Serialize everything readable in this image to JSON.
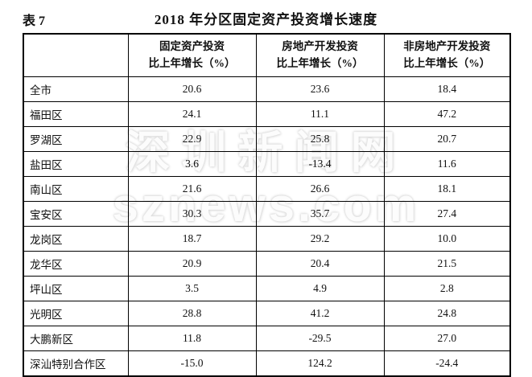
{
  "page": {
    "table_label": "表 7",
    "title": "2018 年分区固定资产投资增长速度"
  },
  "watermark": {
    "line1": "深圳新闻网",
    "line2": "sznews.com"
  },
  "table": {
    "corner_header": "",
    "columns": [
      {
        "line1": "固定资产投资",
        "line2": "比上年增长（%）"
      },
      {
        "line1": "房地产开发投资",
        "line2": "比上年增长（%）"
      },
      {
        "line1": "非房地产开发投资",
        "line2": "比上年增长（%）"
      }
    ],
    "rows": [
      {
        "district": "全市",
        "values": [
          "20.6",
          "23.6",
          "18.4"
        ]
      },
      {
        "district": "福田区",
        "values": [
          "24.1",
          "11.1",
          "47.2"
        ]
      },
      {
        "district": "罗湖区",
        "values": [
          "22.9",
          "25.8",
          "20.7"
        ]
      },
      {
        "district": "盐田区",
        "values": [
          "3.6",
          "-13.4",
          "11.6"
        ]
      },
      {
        "district": "南山区",
        "values": [
          "21.6",
          "26.6",
          "18.1"
        ]
      },
      {
        "district": "宝安区",
        "values": [
          "30.3",
          "35.7",
          "27.4"
        ]
      },
      {
        "district": "龙岗区",
        "values": [
          "18.7",
          "29.2",
          "10.0"
        ]
      },
      {
        "district": "龙华区",
        "values": [
          "20.9",
          "20.4",
          "21.5"
        ]
      },
      {
        "district": "坪山区",
        "values": [
          "3.5",
          "4.9",
          "2.8"
        ]
      },
      {
        "district": "光明区",
        "values": [
          "28.8",
          "41.2",
          "24.8"
        ]
      },
      {
        "district": "大鹏新区",
        "values": [
          "11.8",
          "-29.5",
          "27.0"
        ]
      },
      {
        "district": "深汕特别合作区",
        "values": [
          "-15.0",
          "124.2",
          "-24.4"
        ]
      }
    ]
  },
  "chart_data": {
    "type": "table",
    "title": "2018 年分区固定资产投资增长速度",
    "categories": [
      "全市",
      "福田区",
      "罗湖区",
      "盐田区",
      "南山区",
      "宝安区",
      "龙岗区",
      "龙华区",
      "坪山区",
      "光明区",
      "大鹏新区",
      "深汕特别合作区"
    ],
    "series": [
      {
        "name": "固定资产投资比上年增长（%）",
        "values": [
          20.6,
          24.1,
          22.9,
          3.6,
          21.6,
          30.3,
          18.7,
          20.9,
          3.5,
          28.8,
          11.8,
          -15.0
        ]
      },
      {
        "name": "房地产开发投资比上年增长（%）",
        "values": [
          23.6,
          11.1,
          25.8,
          -13.4,
          26.6,
          35.7,
          29.2,
          20.4,
          4.9,
          41.2,
          -29.5,
          124.2
        ]
      },
      {
        "name": "非房地产开发投资比上年增长（%）",
        "values": [
          18.4,
          47.2,
          20.7,
          11.6,
          18.1,
          27.4,
          10.0,
          21.5,
          2.8,
          24.8,
          27.0,
          -24.4
        ]
      }
    ]
  },
  "colors": {
    "text": "#111111",
    "border": "#000000",
    "background": "#ffffff",
    "watermark": "#e0e0e0"
  }
}
